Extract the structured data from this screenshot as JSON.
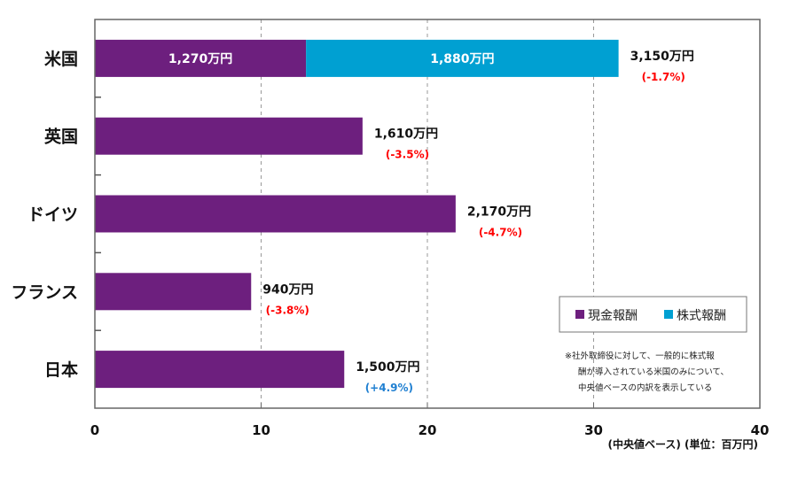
{
  "chart_data": {
    "type": "bar",
    "orientation": "horizontal",
    "stacked": true,
    "categories": [
      "米国",
      "英国",
      "ドイツ",
      "フランス",
      "日本"
    ],
    "series": [
      {
        "name": "現金報酬",
        "color": "#6d1f7e",
        "values": [
          12.7,
          16.1,
          21.7,
          9.4,
          15.0
        ],
        "labels": [
          "1,270万円",
          null,
          null,
          null,
          null
        ]
      },
      {
        "name": "株式報酬",
        "color": "#00a0d2",
        "values": [
          18.8,
          0,
          0,
          0,
          0
        ],
        "labels": [
          "1,880万円",
          null,
          null,
          null,
          null
        ]
      }
    ],
    "totals": [
      31.5,
      16.1,
      21.7,
      9.4,
      15.0
    ],
    "total_labels": [
      "3,150万円",
      "1,610万円",
      "2,170万円",
      "940万円",
      "1,500万円"
    ],
    "change_labels": [
      "(-1.7%)",
      "(-3.5%)",
      "(-4.7%)",
      "(-3.8%)",
      "(+4.9%)"
    ],
    "change_colors": [
      "#ff0000",
      "#ff0000",
      "#ff0000",
      "#ff0000",
      "#1f7fd1"
    ],
    "xlim": [
      0,
      40
    ],
    "xticks": [
      0,
      10,
      20,
      30,
      40
    ],
    "xtick_labels": [
      "0",
      "10",
      "20",
      "30",
      "40"
    ],
    "xlabel": "(中央値ベース) (単位：百万円)",
    "grid": "vertical dashed",
    "legend": {
      "position": "bottom-right",
      "entries": [
        "現金報酬",
        "株式報酬"
      ]
    },
    "annotation": [
      "※社外取締役に対して、一般的に株式報",
      "酬が導入されている米国のみについて、",
      "中央値ベースの内訳を表示している"
    ]
  }
}
